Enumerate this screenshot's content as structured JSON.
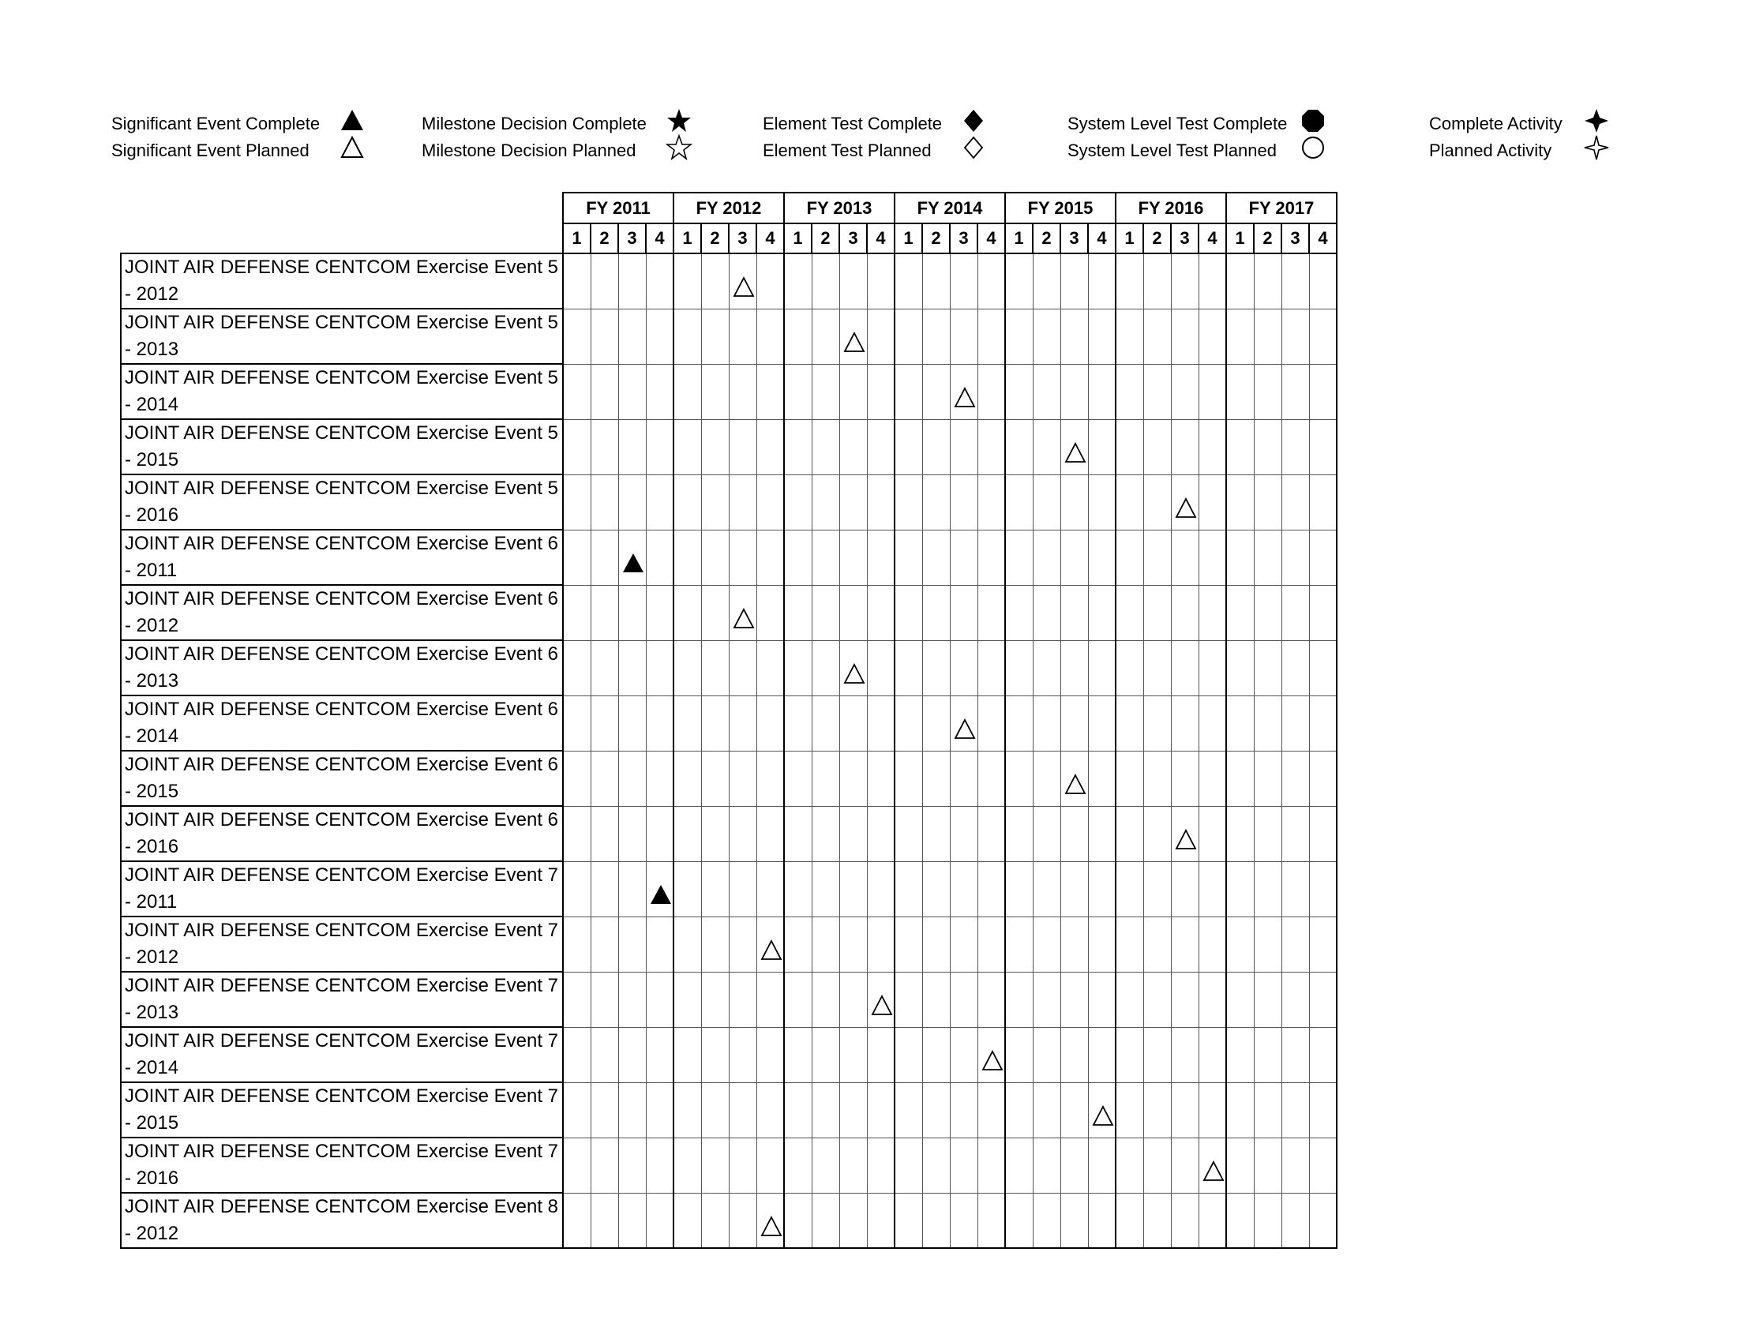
{
  "legend": [
    {
      "label": "Significant Event Complete",
      "icon": "filled-triangle-icon"
    },
    {
      "label": "Significant Event Planned",
      "icon": "open-triangle-icon"
    },
    {
      "label": "Milestone Decision Complete",
      "icon": "filled-star-icon"
    },
    {
      "label": "Milestone Decision Planned",
      "icon": "open-star-icon"
    },
    {
      "label": "Element Test Complete",
      "icon": "filled-diamond-icon"
    },
    {
      "label": "Element Test Planned",
      "icon": "open-diamond-icon"
    },
    {
      "label": "System Level Test Complete",
      "icon": "filled-octagon-icon"
    },
    {
      "label": "System Level Test Planned",
      "icon": "open-circle-icon"
    },
    {
      "label": "Complete Activity",
      "icon": "filled-four-point-star-icon"
    },
    {
      "label": "Planned Activity",
      "icon": "open-four-point-star-icon"
    }
  ],
  "schedule": {
    "fiscal_years": [
      "FY 2011",
      "FY 2012",
      "FY 2013",
      "FY 2014",
      "FY 2015",
      "FY 2016",
      "FY 2017"
    ],
    "quarters": [
      "1",
      "2",
      "3",
      "4"
    ],
    "rows": [
      {
        "label": "JOINT AIR DEFENSE CENTCOM Exercise Event 5 - 2012",
        "event": {
          "fy": "FY 2012",
          "quarter": 3,
          "status": "planned"
        }
      },
      {
        "label": "JOINT AIR DEFENSE CENTCOM Exercise Event 5 - 2013",
        "event": {
          "fy": "FY 2013",
          "quarter": 3,
          "status": "planned"
        }
      },
      {
        "label": "JOINT AIR DEFENSE CENTCOM Exercise Event 5 - 2014",
        "event": {
          "fy": "FY 2014",
          "quarter": 3,
          "status": "planned"
        }
      },
      {
        "label": "JOINT AIR DEFENSE CENTCOM Exercise Event 5 - 2015",
        "event": {
          "fy": "FY 2015",
          "quarter": 3,
          "status": "planned"
        }
      },
      {
        "label": "JOINT AIR DEFENSE CENTCOM Exercise Event 5 - 2016",
        "event": {
          "fy": "FY 2016",
          "quarter": 3,
          "status": "planned"
        }
      },
      {
        "label": "JOINT AIR DEFENSE CENTCOM Exercise Event 6 - 2011",
        "event": {
          "fy": "FY 2011",
          "quarter": 3,
          "status": "complete"
        }
      },
      {
        "label": "JOINT AIR DEFENSE CENTCOM Exercise Event 6 - 2012",
        "event": {
          "fy": "FY 2012",
          "quarter": 3,
          "status": "planned"
        }
      },
      {
        "label": "JOINT AIR DEFENSE CENTCOM Exercise Event 6 - 2013",
        "event": {
          "fy": "FY 2013",
          "quarter": 3,
          "status": "planned"
        }
      },
      {
        "label": "JOINT AIR DEFENSE CENTCOM Exercise Event 6 - 2014",
        "event": {
          "fy": "FY 2014",
          "quarter": 3,
          "status": "planned"
        }
      },
      {
        "label": "JOINT AIR DEFENSE CENTCOM Exercise Event 6 - 2015",
        "event": {
          "fy": "FY 2015",
          "quarter": 3,
          "status": "planned"
        }
      },
      {
        "label": "JOINT AIR DEFENSE CENTCOM Exercise Event 6 - 2016",
        "event": {
          "fy": "FY 2016",
          "quarter": 3,
          "status": "planned"
        }
      },
      {
        "label": "JOINT AIR DEFENSE CENTCOM Exercise Event 7 - 2011",
        "event": {
          "fy": "FY 2011",
          "quarter": 4,
          "status": "complete"
        }
      },
      {
        "label": "JOINT AIR DEFENSE CENTCOM Exercise Event 7 - 2012",
        "event": {
          "fy": "FY 2012",
          "quarter": 4,
          "status": "planned"
        }
      },
      {
        "label": "JOINT AIR DEFENSE CENTCOM Exercise Event 7 - 2013",
        "event": {
          "fy": "FY 2013",
          "quarter": 4,
          "status": "planned"
        }
      },
      {
        "label": "JOINT AIR DEFENSE CENTCOM Exercise Event 7 - 2014",
        "event": {
          "fy": "FY 2014",
          "quarter": 4,
          "status": "planned"
        }
      },
      {
        "label": "JOINT AIR DEFENSE CENTCOM Exercise Event 7 - 2015",
        "event": {
          "fy": "FY 2015",
          "quarter": 4,
          "status": "planned"
        }
      },
      {
        "label": "JOINT AIR DEFENSE CENTCOM Exercise Event 7 - 2016",
        "event": {
          "fy": "FY 2016",
          "quarter": 4,
          "status": "planned"
        }
      },
      {
        "label": "JOINT AIR DEFENSE CENTCOM Exercise Event 8 - 2012",
        "event": {
          "fy": "FY 2012",
          "quarter": 4,
          "status": "planned"
        }
      }
    ]
  }
}
